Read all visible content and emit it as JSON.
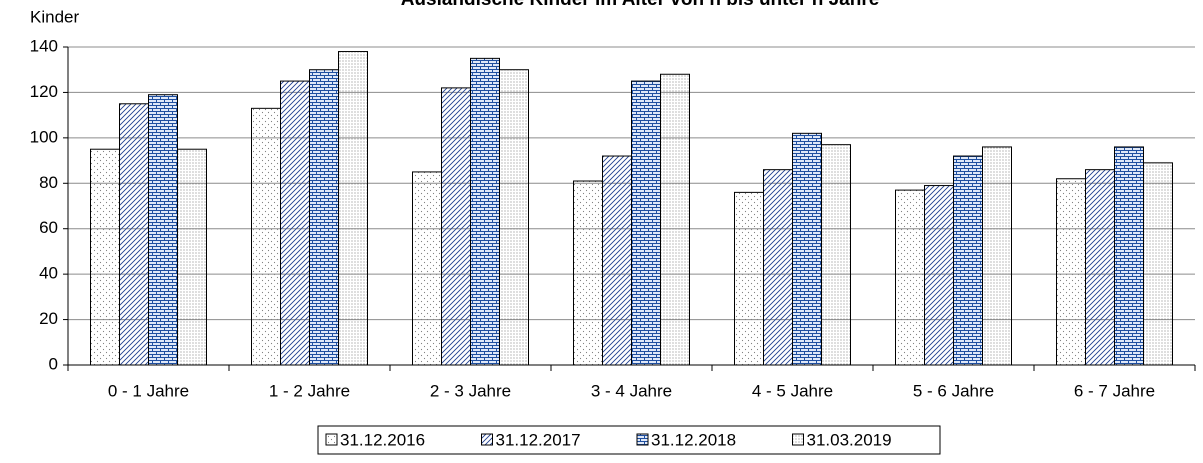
{
  "chart_data": {
    "type": "bar",
    "title": "Ausländische Kinder im Alter von n bis unter n Jahre",
    "y_label": "Kinder",
    "categories": [
      "0 - 1 Jahre",
      "1 - 2 Jahre",
      "2 - 3 Jahre",
      "3 - 4 Jahre",
      "4 - 5 Jahre",
      "5 - 6 Jahre",
      "6 - 7 Jahre"
    ],
    "series": [
      {
        "name": "31.12.2016",
        "color": "#808080",
        "pattern": "dots",
        "values": [
          95,
          113,
          85,
          81,
          76,
          77,
          82
        ]
      },
      {
        "name": "31.12.2017",
        "color": "#1f3f8f",
        "pattern": "hatch",
        "values": [
          115,
          125,
          122,
          92,
          86,
          79,
          86
        ]
      },
      {
        "name": "31.12.2018",
        "color": "#1f4fa0",
        "pattern": "brick",
        "values": [
          119,
          130,
          135,
          125,
          102,
          92,
          96
        ]
      },
      {
        "name": "31.03.2019",
        "color": "#606060",
        "pattern": "finedots",
        "values": [
          95,
          138,
          130,
          128,
          97,
          96,
          89
        ]
      }
    ],
    "ylim": [
      0,
      140
    ],
    "yticks": [
      0,
      20,
      40,
      60,
      80,
      100,
      120,
      140
    ],
    "grid": true,
    "legend": "bottom"
  }
}
